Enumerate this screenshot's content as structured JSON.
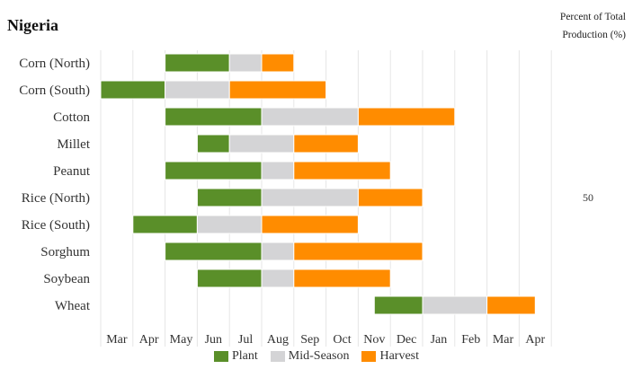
{
  "chart_data": {
    "type": "bar",
    "subtype": "gantt",
    "title": "Nigeria",
    "right_label": [
      "Percent of Total",
      "Production (%)"
    ],
    "months": [
      "Mar",
      "Apr",
      "May",
      "Jun",
      "Jul",
      "Aug",
      "Sep",
      "Oct",
      "Nov",
      "Dec",
      "Jan",
      "Feb",
      "Mar",
      "Apr"
    ],
    "legend": [
      {
        "name": "Plant",
        "color": "#5a8f29"
      },
      {
        "name": "Mid-Season",
        "color": "#d4d4d6"
      },
      {
        "name": "Harvest",
        "color": "#ff8c00"
      }
    ],
    "legend_position": "bottom",
    "grid": true,
    "crops": [
      {
        "name": "Corn (North)",
        "plant": [
          2.0,
          4.0
        ],
        "mid": [
          4.0,
          5.0
        ],
        "harvest": [
          5.0,
          6.0
        ],
        "percent": ""
      },
      {
        "name": "Corn (South)",
        "plant": [
          0.0,
          2.0
        ],
        "mid": [
          2.0,
          4.0
        ],
        "harvest": [
          4.0,
          7.0
        ],
        "percent": ""
      },
      {
        "name": "Cotton",
        "plant": [
          2.0,
          5.0
        ],
        "mid": [
          5.0,
          8.0
        ],
        "harvest": [
          8.0,
          11.0
        ],
        "percent": ""
      },
      {
        "name": "Millet",
        "plant": [
          3.0,
          4.0
        ],
        "mid": [
          4.0,
          6.0
        ],
        "harvest": [
          6.0,
          8.0
        ],
        "percent": ""
      },
      {
        "name": "Peanut",
        "plant": [
          2.0,
          5.0
        ],
        "mid": [
          5.0,
          6.0
        ],
        "harvest": [
          6.0,
          9.0
        ],
        "percent": ""
      },
      {
        "name": "Rice (North)",
        "plant": [
          3.0,
          5.0
        ],
        "mid": [
          5.0,
          8.0
        ],
        "harvest": [
          8.0,
          10.0
        ],
        "percent": "50"
      },
      {
        "name": "Rice (South)",
        "plant": [
          1.0,
          3.0
        ],
        "mid": [
          3.0,
          5.0
        ],
        "harvest": [
          5.0,
          8.0
        ],
        "percent": ""
      },
      {
        "name": "Sorghum",
        "plant": [
          2.0,
          5.0
        ],
        "mid": [
          5.0,
          6.0
        ],
        "harvest": [
          6.0,
          10.0
        ],
        "percent": ""
      },
      {
        "name": "Soybean",
        "plant": [
          3.0,
          5.0
        ],
        "mid": [
          5.0,
          6.0
        ],
        "harvest": [
          6.0,
          9.0
        ],
        "percent": ""
      },
      {
        "name": "Wheat",
        "plant": [
          8.5,
          10.0
        ],
        "mid": [
          10.0,
          12.0
        ],
        "harvest": [
          12.0,
          13.5
        ],
        "percent": ""
      }
    ]
  }
}
